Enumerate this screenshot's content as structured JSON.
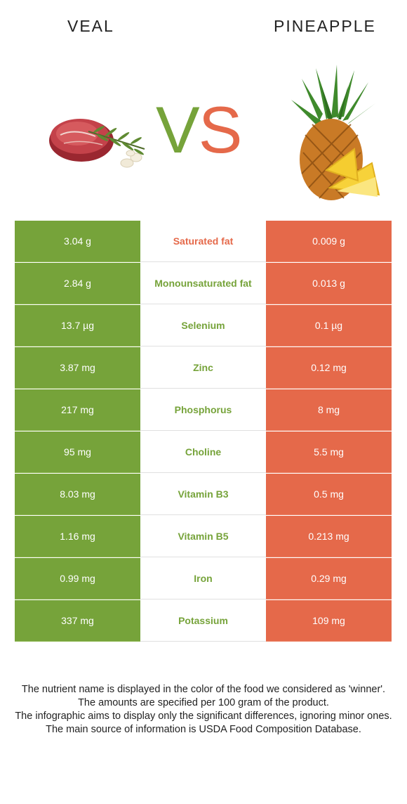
{
  "header": {
    "left_food": "VEAL",
    "right_food": "PINEAPPLE",
    "vs_v": "V",
    "vs_s": "S"
  },
  "colors": {
    "left": "#76a33a",
    "right": "#e5694a"
  },
  "rows": [
    {
      "left": "3.04 g",
      "nutrient": "Saturated fat",
      "right": "0.009 g",
      "winner": "right"
    },
    {
      "left": "2.84 g",
      "nutrient": "Monounsaturated fat",
      "right": "0.013 g",
      "winner": "left"
    },
    {
      "left": "13.7 µg",
      "nutrient": "Selenium",
      "right": "0.1 µg",
      "winner": "left"
    },
    {
      "left": "3.87 mg",
      "nutrient": "Zinc",
      "right": "0.12 mg",
      "winner": "left"
    },
    {
      "left": "217 mg",
      "nutrient": "Phosphorus",
      "right": "8 mg",
      "winner": "left"
    },
    {
      "left": "95 mg",
      "nutrient": "Choline",
      "right": "5.5 mg",
      "winner": "left"
    },
    {
      "left": "8.03 mg",
      "nutrient": "Vitamin B3",
      "right": "0.5 mg",
      "winner": "left"
    },
    {
      "left": "1.16 mg",
      "nutrient": "Vitamin B5",
      "right": "0.213 mg",
      "winner": "left"
    },
    {
      "left": "0.99 mg",
      "nutrient": "Iron",
      "right": "0.29 mg",
      "winner": "left"
    },
    {
      "left": "337 mg",
      "nutrient": "Potassium",
      "right": "109 mg",
      "winner": "left"
    }
  ],
  "footer": {
    "line1": "The nutrient name is displayed in the color of the food we considered as 'winner'.",
    "line2": "The amounts are specified per 100 gram of the product.",
    "line3": "The infographic aims to display only the significant differences, ignoring minor ones.",
    "line4": "The main source of information is USDA Food Composition Database."
  }
}
